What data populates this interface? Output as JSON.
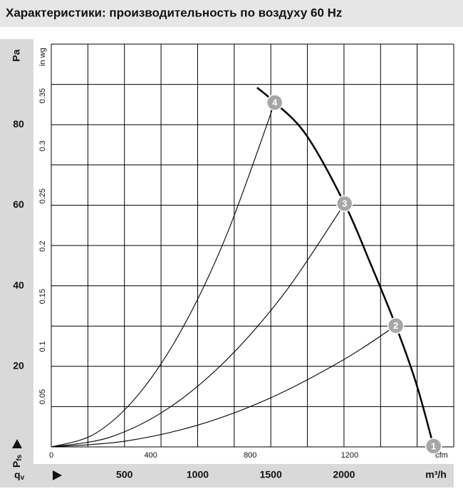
{
  "chart_data": {
    "type": "line",
    "title": "Характеристики: производительность по воздуху 60 Hz",
    "ylabel": "Pa",
    "y2label": "in wg",
    "xlabel": "m³/h",
    "x2label": "cfm",
    "y_symbol": "P",
    "y_symbol_sub": "fs",
    "x_symbol": "q",
    "x_symbol_sub": "v",
    "xlim": [
      0,
      2750
    ],
    "ylim": [
      0,
      100
    ],
    "xticks": [
      500,
      1000,
      1500,
      2000
    ],
    "yticks": [
      20,
      40,
      60,
      80
    ],
    "x2lim": [
      0,
      1618.6
    ],
    "x2ticks": [
      0,
      400,
      800,
      1200
    ],
    "y2lim": [
      0,
      0.4015
    ],
    "y2ticks": [
      0.05,
      0.1,
      0.15,
      0.2,
      0.25,
      0.3,
      0.35
    ],
    "xgrid": [
      0,
      250,
      500,
      750,
      1000,
      1250,
      1500,
      1750,
      2000,
      2250,
      2500,
      2750
    ],
    "ygrid": [
      0,
      10,
      20,
      30,
      40,
      50,
      60,
      70,
      80,
      90,
      100
    ],
    "grid": true,
    "series": [
      {
        "color": "#000000",
        "x": [
          1406,
          1527,
          1741,
          2004,
          2179,
          2354,
          2495,
          2612
        ],
        "y": [
          89.2,
          85.5,
          77.5,
          60.4,
          45.7,
          30.1,
          15.6,
          0.2
        ]
      },
      {
        "color": "#000000",
        "x": [
          0,
          300,
          600,
          900,
          1200,
          1527
        ],
        "y": [
          0,
          3.3,
          13.2,
          29.7,
          52.8,
          85.5
        ]
      },
      {
        "color": "#000000",
        "x": [
          0,
          400,
          800,
          1200,
          1600,
          2004
        ],
        "y": [
          0,
          2.4,
          9.6,
          21.7,
          38.5,
          60.4
        ]
      },
      {
        "color": "#000000",
        "x": [
          0,
          500,
          1000,
          1500,
          2000,
          2354
        ],
        "y": [
          0,
          1.4,
          5.4,
          12.2,
          21.7,
          30.1
        ]
      }
    ],
    "points": [
      {
        "label": "1",
        "x": 2612,
        "y": 0.2
      },
      {
        "label": "2",
        "x": 2354,
        "y": 30.1
      },
      {
        "label": "3",
        "x": 2004,
        "y": 60.4
      },
      {
        "label": "4",
        "x": 1527,
        "y": 85.5
      }
    ]
  }
}
